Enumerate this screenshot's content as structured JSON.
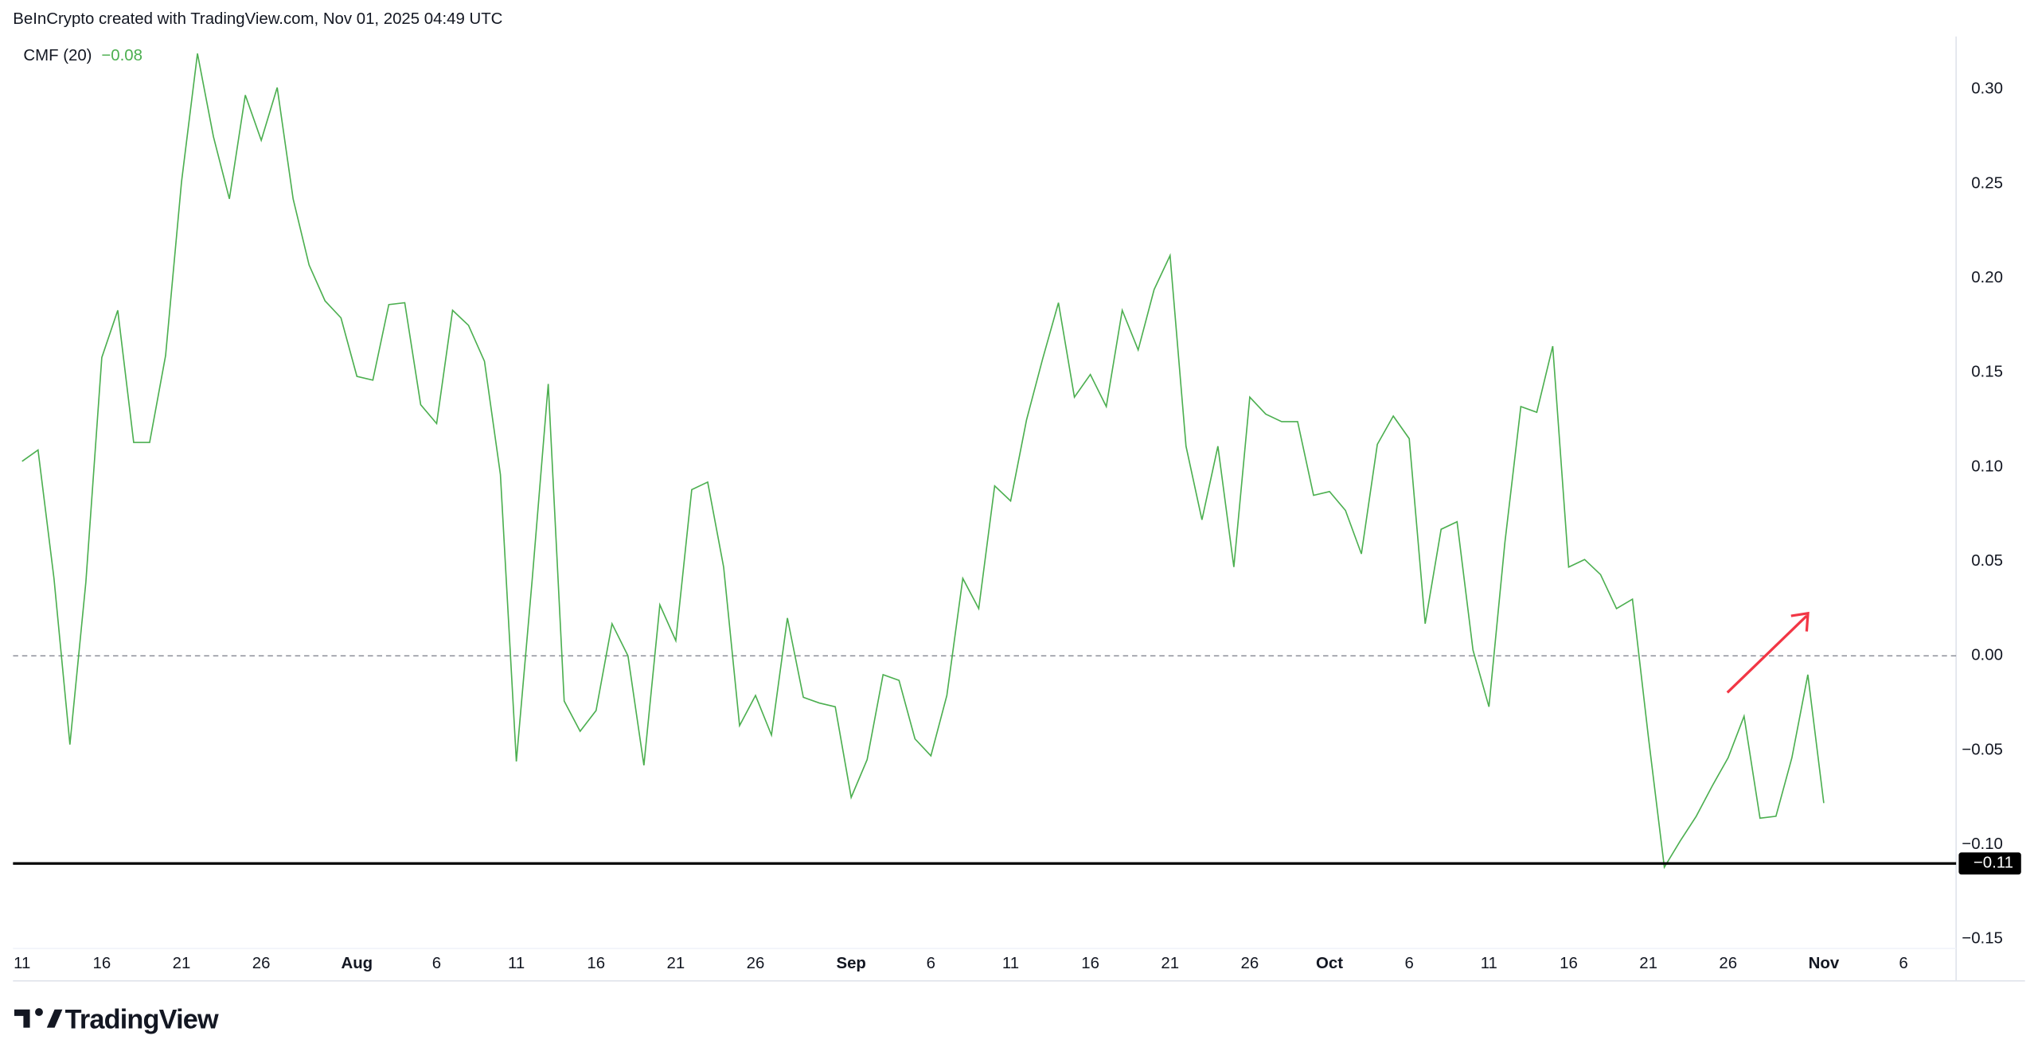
{
  "header": "BeInCrypto created with TradingView.com, Nov 01, 2025 04:49 UTC",
  "logo": "TradingView",
  "chart_data": {
    "type": "line",
    "legend": {
      "name": "CMF (20)",
      "value": "−0.08"
    },
    "color": "#4caf50",
    "values": [
      0.103,
      0.109,
      0.041,
      -0.047,
      0.039,
      0.158,
      0.183,
      0.113,
      0.113,
      0.159,
      0.251,
      0.319,
      0.275,
      0.242,
      0.297,
      0.273,
      0.301,
      0.242,
      0.207,
      0.188,
      0.179,
      0.148,
      0.146,
      0.186,
      0.187,
      0.133,
      0.123,
      0.183,
      0.175,
      0.156,
      0.096,
      -0.056,
      0.041,
      0.144,
      -0.024,
      -0.04,
      -0.029,
      0.017,
      0.0,
      -0.058,
      0.027,
      0.008,
      0.088,
      0.092,
      0.047,
      -0.037,
      -0.021,
      -0.042,
      0.02,
      -0.022,
      -0.025,
      -0.027,
      -0.075,
      -0.055,
      -0.01,
      -0.013,
      -0.044,
      -0.053,
      -0.021,
      0.041,
      0.025,
      0.09,
      0.082,
      0.125,
      0.157,
      0.187,
      0.137,
      0.149,
      0.132,
      0.183,
      0.162,
      0.194,
      0.212,
      0.111,
      0.072,
      0.111,
      0.047,
      0.137,
      0.128,
      0.124,
      0.124,
      0.085,
      0.087,
      0.077,
      0.054,
      0.112,
      0.127,
      0.115,
      0.017,
      0.067,
      0.071,
      0.003,
      -0.027,
      0.06,
      0.132,
      0.129,
      0.164,
      0.047,
      0.051,
      0.043,
      0.025,
      0.03,
      -0.043,
      -0.112,
      -0.098,
      -0.085,
      -0.069,
      -0.054,
      -0.032,
      -0.086,
      -0.085,
      -0.054,
      -0.01,
      -0.078
    ],
    "xlim": [
      -0.57,
      121.3
    ],
    "xticks": [
      {
        "value": 0,
        "label": "11"
      },
      {
        "value": 5,
        "label": "16"
      },
      {
        "value": 10,
        "label": "21"
      },
      {
        "value": 15,
        "label": "26"
      },
      {
        "value": 21,
        "label": "Aug"
      },
      {
        "value": 26,
        "label": "6"
      },
      {
        "value": 31,
        "label": "11"
      },
      {
        "value": 36,
        "label": "16"
      },
      {
        "value": 41,
        "label": "21"
      },
      {
        "value": 46,
        "label": "26"
      },
      {
        "value": 52,
        "label": "Sep"
      },
      {
        "value": 57,
        "label": "6"
      },
      {
        "value": 62,
        "label": "11"
      },
      {
        "value": 67,
        "label": "16"
      },
      {
        "value": 72,
        "label": "21"
      },
      {
        "value": 77,
        "label": "26"
      },
      {
        "value": 82,
        "label": "Oct"
      },
      {
        "value": 87,
        "label": "6"
      },
      {
        "value": 92,
        "label": "11"
      },
      {
        "value": 97,
        "label": "16"
      },
      {
        "value": 102,
        "label": "21"
      },
      {
        "value": 107,
        "label": "26"
      },
      {
        "value": 113,
        "label": "Nov"
      },
      {
        "value": 118,
        "label": "6"
      }
    ],
    "ylim": [
      -0.155,
      0.328
    ],
    "yticks": [
      {
        "value": 0.3,
        "label": "0.30"
      },
      {
        "value": 0.25,
        "label": "0.25"
      },
      {
        "value": 0.2,
        "label": "0.20"
      },
      {
        "value": 0.15,
        "label": "0.15"
      },
      {
        "value": 0.1,
        "label": "0.10"
      },
      {
        "value": 0.05,
        "label": "0.05"
      },
      {
        "value": 0,
        "label": "0.00"
      },
      {
        "value": -0.05,
        "label": "−0.05"
      },
      {
        "value": -0.1,
        "label": "−0.10"
      },
      {
        "value": -0.15,
        "label": "−0.15"
      }
    ],
    "zero_line": {
      "value": 0,
      "style": "dashed"
    },
    "hline": {
      "value": -0.11,
      "label": "−0.11",
      "color": "#000000"
    }
  }
}
